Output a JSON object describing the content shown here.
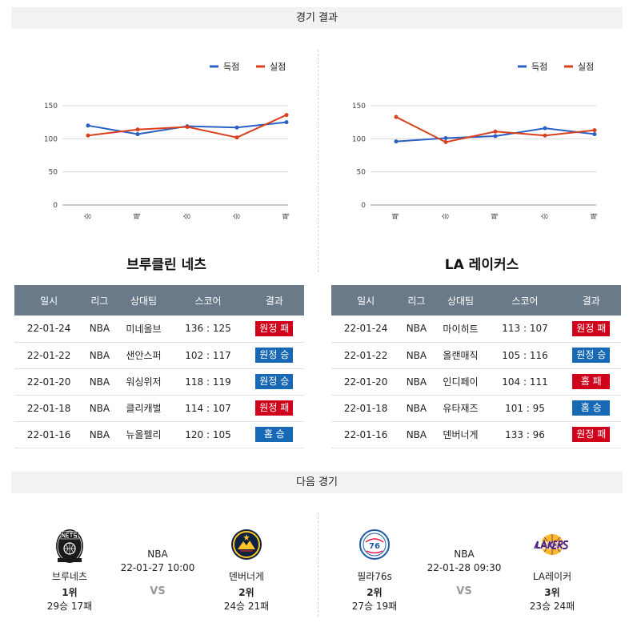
{
  "section_results": "경기 결과",
  "section_next": "다음 경기",
  "legend": {
    "score": "득점",
    "allowed": "실점",
    "score_color": "#2a5fc4",
    "allowed_color": "#d9401c"
  },
  "left_team": {
    "title": "브루클린 네츠",
    "chart_data": {
      "type": "line",
      "categories": [
        "승",
        "패",
        "승",
        "승",
        "패"
      ],
      "series": [
        {
          "name": "득점",
          "values": [
            120,
            107,
            119,
            117,
            125
          ]
        },
        {
          "name": "실점",
          "values": [
            105,
            114,
            118,
            102,
            136
          ]
        }
      ],
      "yticks": [
        0,
        50,
        100,
        150
      ],
      "ylim": [
        0,
        150
      ],
      "legend": "top-right",
      "grid": true
    },
    "table": {
      "headers": [
        "일시",
        "리그",
        "상대팀",
        "스코어",
        "결과"
      ],
      "rows": [
        {
          "date": "22-01-24",
          "league": "NBA",
          "opponent": "미네올브",
          "score": "136 : 125",
          "result": "원정 패",
          "type": "loss"
        },
        {
          "date": "22-01-22",
          "league": "NBA",
          "opponent": "샌안스퍼",
          "score": "102 : 117",
          "result": "원정 승",
          "type": "win"
        },
        {
          "date": "22-01-20",
          "league": "NBA",
          "opponent": "워싱위저",
          "score": "118 : 119",
          "result": "원정 승",
          "type": "win"
        },
        {
          "date": "22-01-18",
          "league": "NBA",
          "opponent": "클리캐벌",
          "score": "114 : 107",
          "result": "원정 패",
          "type": "loss"
        },
        {
          "date": "22-01-16",
          "league": "NBA",
          "opponent": "뉴올펠리",
          "score": "120 : 105",
          "result": "홈 승",
          "type": "win"
        }
      ]
    }
  },
  "right_team": {
    "title": "LA 레이커스",
    "chart_data": {
      "type": "line",
      "categories": [
        "패",
        "승",
        "패",
        "승",
        "패"
      ],
      "series": [
        {
          "name": "득점",
          "values": [
            96,
            101,
            104,
            116,
            107
          ]
        },
        {
          "name": "실점",
          "values": [
            133,
            95,
            111,
            105,
            113
          ]
        }
      ],
      "yticks": [
        0,
        50,
        100,
        150
      ],
      "ylim": [
        0,
        150
      ],
      "legend": "top-right",
      "grid": true
    },
    "table": {
      "headers": [
        "일시",
        "리그",
        "상대팀",
        "스코어",
        "결과"
      ],
      "rows": [
        {
          "date": "22-01-24",
          "league": "NBA",
          "opponent": "마이히트",
          "score": "113 : 107",
          "result": "원정 패",
          "type": "loss"
        },
        {
          "date": "22-01-22",
          "league": "NBA",
          "opponent": "올랜매직",
          "score": "105 : 116",
          "result": "원정 승",
          "type": "win"
        },
        {
          "date": "22-01-20",
          "league": "NBA",
          "opponent": "인디페이",
          "score": "104 : 111",
          "result": "홈 패",
          "type": "loss"
        },
        {
          "date": "22-01-18",
          "league": "NBA",
          "opponent": "유타재즈",
          "score": "101 : 95",
          "result": "홈 승",
          "type": "win"
        },
        {
          "date": "22-01-16",
          "league": "NBA",
          "opponent": "덴버너게",
          "score": "133 : 96",
          "result": "원정 패",
          "type": "loss"
        }
      ]
    }
  },
  "next_games": [
    {
      "league": "NBA",
      "datetime": "22-01-27 10:00",
      "vs": "VS",
      "home": {
        "name": "브루네츠",
        "rank": "1위",
        "record": "29승 17패",
        "logo": "nets-logo"
      },
      "away": {
        "name": "덴버너게",
        "rank": "2위",
        "record": "24승 21패",
        "logo": "nuggets-logo"
      }
    },
    {
      "league": "NBA",
      "datetime": "22-01-28 09:30",
      "vs": "VS",
      "home": {
        "name": "필라76s",
        "rank": "2위",
        "record": "27승 19패",
        "logo": "76ers-logo"
      },
      "away": {
        "name": "LA레이커",
        "rank": "3위",
        "record": "23승 24패",
        "logo": "lakers-logo"
      }
    }
  ]
}
